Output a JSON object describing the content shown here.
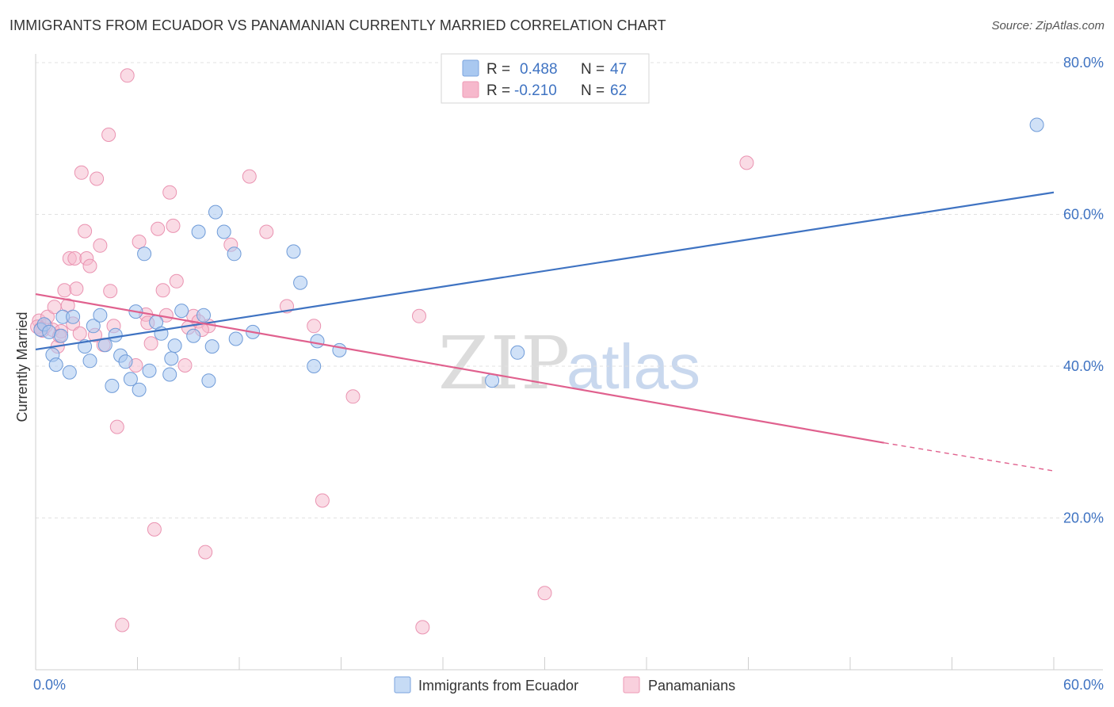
{
  "header": {
    "title": "IMMIGRANTS FROM ECUADOR VS PANAMANIAN CURRENTLY MARRIED CORRELATION CHART",
    "source": "Source: ZipAtlas.com"
  },
  "watermark": {
    "zip": "ZIP",
    "atlas": "atlas"
  },
  "legend": {
    "r_label": "R =",
    "n_label": "N =",
    "rows": [
      {
        "r": "0.488",
        "n": "47",
        "color": "#a9c8f0"
      },
      {
        "r": "-0.210",
        "n": "62",
        "color": "#f6b8cc"
      }
    ]
  },
  "chart_data": {
    "type": "scatter",
    "title": "IMMIGRANTS FROM ECUADOR VS PANAMANIAN CURRENTLY MARRIED CORRELATION CHART",
    "xlabel": "",
    "ylabel": "Currently Married",
    "xlim": [
      0,
      60
    ],
    "ylim": [
      0,
      80
    ],
    "x_tick_labels": [
      "0.0%",
      "60.0%"
    ],
    "y_tick_labels": [
      "20.0%",
      "40.0%",
      "60.0%",
      "80.0%"
    ],
    "y_ticks": [
      20,
      40,
      60,
      80
    ],
    "grid": "horizontal dashed",
    "legend_position": "top-center",
    "colors": {
      "blue": "#3f73c2",
      "pink": "#e0618e",
      "blue_fill": "#a9c8f0",
      "pink_fill": "#f6b8cc"
    },
    "series": [
      {
        "name": "Immigrants from Ecuador",
        "trend": {
          "x": [
            0,
            60
          ],
          "y": [
            42.2,
            62.9
          ],
          "dashed_from": null
        },
        "points": [
          [
            0.3,
            44.8
          ],
          [
            0.5,
            45.5
          ],
          [
            0.8,
            44.5
          ],
          [
            1.0,
            41.5
          ],
          [
            1.2,
            40.2
          ],
          [
            1.5,
            44.0
          ],
          [
            1.6,
            46.5
          ],
          [
            2.0,
            39.2
          ],
          [
            2.2,
            46.5
          ],
          [
            2.9,
            42.6
          ],
          [
            3.2,
            40.7
          ],
          [
            3.4,
            45.3
          ],
          [
            3.8,
            46.7
          ],
          [
            4.1,
            42.8
          ],
          [
            4.5,
            37.4
          ],
          [
            4.7,
            44.1
          ],
          [
            5.0,
            41.4
          ],
          [
            5.3,
            40.6
          ],
          [
            5.6,
            38.3
          ],
          [
            5.9,
            47.2
          ],
          [
            6.1,
            36.9
          ],
          [
            6.4,
            54.8
          ],
          [
            6.7,
            39.4
          ],
          [
            7.1,
            45.8
          ],
          [
            7.4,
            44.3
          ],
          [
            7.9,
            38.9
          ],
          [
            8.0,
            41.0
          ],
          [
            8.2,
            42.7
          ],
          [
            8.6,
            47.3
          ],
          [
            9.3,
            44.0
          ],
          [
            9.6,
            57.7
          ],
          [
            9.9,
            46.7
          ],
          [
            10.2,
            38.1
          ],
          [
            10.4,
            42.6
          ],
          [
            10.6,
            60.3
          ],
          [
            11.1,
            57.7
          ],
          [
            11.7,
            54.8
          ],
          [
            11.8,
            43.6
          ],
          [
            12.8,
            44.5
          ],
          [
            15.2,
            55.1
          ],
          [
            15.6,
            51.0
          ],
          [
            16.4,
            40.0
          ],
          [
            16.6,
            43.3
          ],
          [
            17.9,
            42.1
          ],
          [
            26.9,
            38.1
          ],
          [
            28.4,
            41.8
          ],
          [
            59.0,
            71.8
          ]
        ]
      },
      {
        "name": "Panamanians",
        "trend": {
          "x": [
            0,
            50,
            60
          ],
          "y": [
            49.5,
            29.9,
            26.2
          ],
          "dashed_from": 50
        },
        "points": [
          [
            0.2,
            46.0
          ],
          [
            0.4,
            44.7
          ],
          [
            0.6,
            45.3
          ],
          [
            0.7,
            46.5
          ],
          [
            1.0,
            44.8
          ],
          [
            1.1,
            47.8
          ],
          [
            1.3,
            42.6
          ],
          [
            1.5,
            44.6
          ],
          [
            1.7,
            50.0
          ],
          [
            1.9,
            48.0
          ],
          [
            2.0,
            54.2
          ],
          [
            2.2,
            45.6
          ],
          [
            2.3,
            54.2
          ],
          [
            2.4,
            50.2
          ],
          [
            2.7,
            65.5
          ],
          [
            2.9,
            57.8
          ],
          [
            3.0,
            54.2
          ],
          [
            3.2,
            53.2
          ],
          [
            3.5,
            44.1
          ],
          [
            3.6,
            64.7
          ],
          [
            3.8,
            55.9
          ],
          [
            4.0,
            42.8
          ],
          [
            4.3,
            70.5
          ],
          [
            4.4,
            49.9
          ],
          [
            4.6,
            45.3
          ],
          [
            4.8,
            32.0
          ],
          [
            5.1,
            5.9
          ],
          [
            5.4,
            78.3
          ],
          [
            5.9,
            40.1
          ],
          [
            6.1,
            56.4
          ],
          [
            6.5,
            46.8
          ],
          [
            6.8,
            43.0
          ],
          [
            7.0,
            18.5
          ],
          [
            7.2,
            58.1
          ],
          [
            7.5,
            50.0
          ],
          [
            7.7,
            46.7
          ],
          [
            7.9,
            62.9
          ],
          [
            8.1,
            58.5
          ],
          [
            8.3,
            51.2
          ],
          [
            8.8,
            40.1
          ],
          [
            9.0,
            45.1
          ],
          [
            9.3,
            46.6
          ],
          [
            9.6,
            45.9
          ],
          [
            10.0,
            15.5
          ],
          [
            10.2,
            45.3
          ],
          [
            11.5,
            56.0
          ],
          [
            12.6,
            65.0
          ],
          [
            13.6,
            57.7
          ],
          [
            14.8,
            47.9
          ],
          [
            16.4,
            45.3
          ],
          [
            16.9,
            22.3
          ],
          [
            18.7,
            36.0
          ],
          [
            22.6,
            46.6
          ],
          [
            22.8,
            5.6
          ],
          [
            30.0,
            10.1
          ],
          [
            41.9,
            66.8
          ],
          [
            0.1,
            45.2
          ],
          [
            0.3,
            44.9
          ],
          [
            1.4,
            44.0
          ],
          [
            2.6,
            44.3
          ],
          [
            6.6,
            45.7
          ],
          [
            9.8,
            44.8
          ]
        ]
      }
    ]
  },
  "bottom_legend": {
    "items": [
      {
        "label": "Immigrants from Ecuador"
      },
      {
        "label": "Panamanians"
      }
    ]
  }
}
